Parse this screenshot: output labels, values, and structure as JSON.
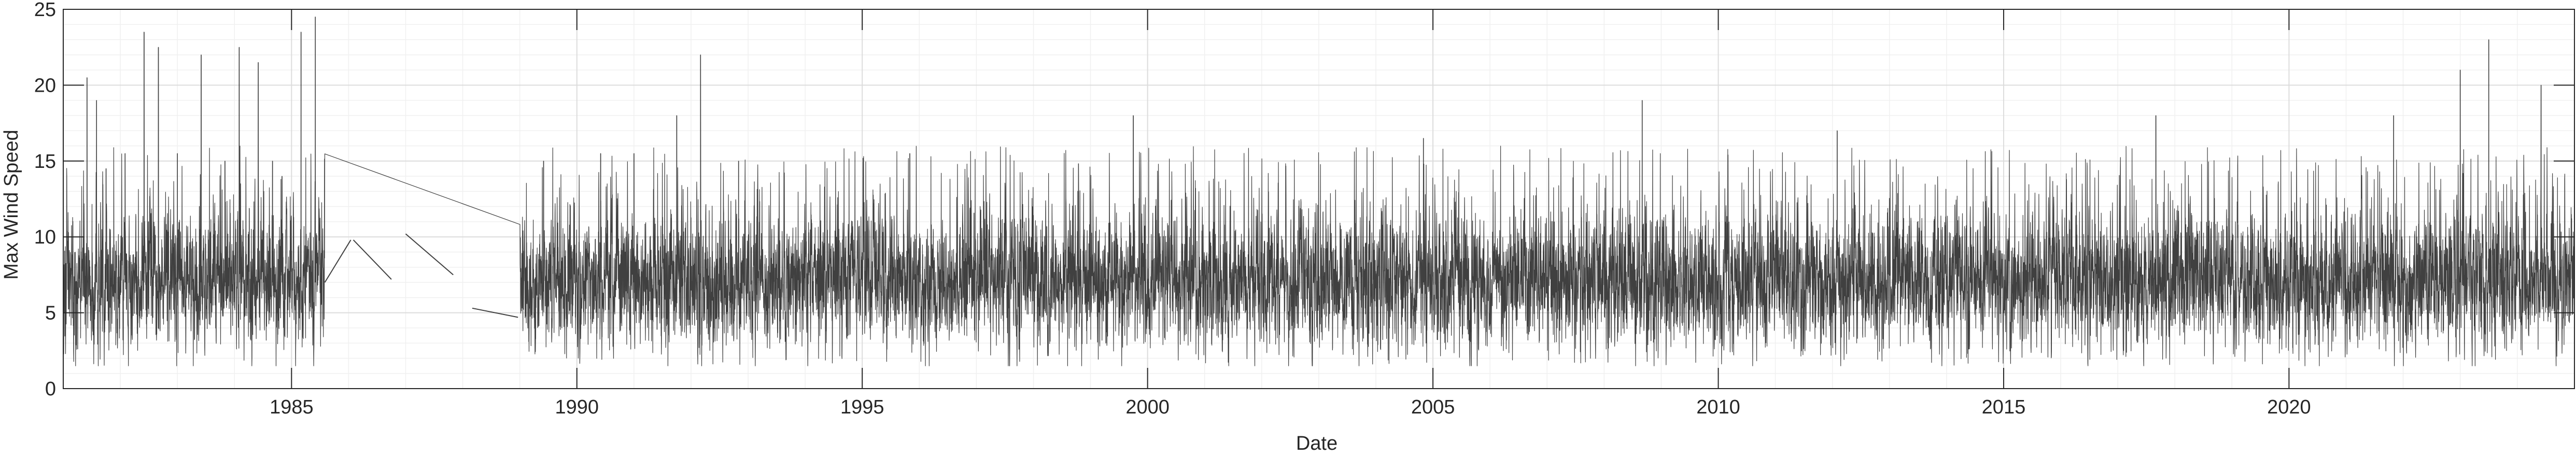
{
  "chart_data": {
    "type": "line",
    "title": "",
    "xlabel": "Date",
    "ylabel": "Max Wind Speed",
    "x_range": [
      "1981-01-01",
      "2024-12-31"
    ],
    "ylim": [
      0,
      25
    ],
    "x_ticks": [
      "1985",
      "1990",
      "1995",
      "2000",
      "2005",
      "2010",
      "2015",
      "2020"
    ],
    "y_ticks": [
      "0",
      "5",
      "10",
      "15",
      "20",
      "25"
    ],
    "grid": "on (major and minor)",
    "box": "on",
    "line_color": "#404040",
    "data_gaps": [
      [
        "1985-08",
        "1989-01"
      ]
    ],
    "sparse_segments": [
      {
        "x": [
          "1985-08-01",
          "1986-01-15"
        ],
        "y": [
          7.0,
          9.8
        ]
      },
      {
        "x": [
          "1986-02-01",
          "1986-10-01"
        ],
        "y": [
          9.8,
          7.2
        ]
      },
      {
        "x": [
          "1987-01-01",
          "1987-11-01"
        ],
        "y": [
          10.2,
          7.5
        ]
      },
      {
        "x": [
          "1988-03-01",
          "1988-12-20"
        ],
        "y": [
          5.3,
          4.7
        ]
      }
    ],
    "series": [
      {
        "approx_monthly_daily_max": {
          "x": [
            "1981-06",
            "1981-08",
            "1981-10",
            "1982-02",
            "1982-06",
            "1982-09",
            "1983-01",
            "1983-06",
            "1983-11",
            "1984-02",
            "1984-06",
            "1984-09",
            "1984-11",
            "1985-03",
            "1985-06",
            "1989-06",
            "1990-06",
            "1991-01",
            "1991-10",
            "1992-03",
            "1992-11",
            "1995-11",
            "1999-10",
            "2004-11",
            "2008-09",
            "2012-02",
            "2017-09",
            "2021-11",
            "2023-01",
            "2023-07",
            "2024-06"
          ],
          "y": [
            20.5,
            19.0,
            14.5,
            15.5,
            23.5,
            22.5,
            15.5,
            22.0,
            15.0,
            22.5,
            21.5,
            15.0,
            14.0,
            23.5,
            24.5,
            15.0,
            15.5,
            15.5,
            18.0,
            22.0,
            15.0,
            15.5,
            18.0,
            16.5,
            19.0,
            17.0,
            18.0,
            18.0,
            21.0,
            23.0,
            20.0
          ]
        },
        "typical_range": {
          "lower": 3.0,
          "median": 7.0,
          "upper": 12.0
        }
      }
    ]
  }
}
